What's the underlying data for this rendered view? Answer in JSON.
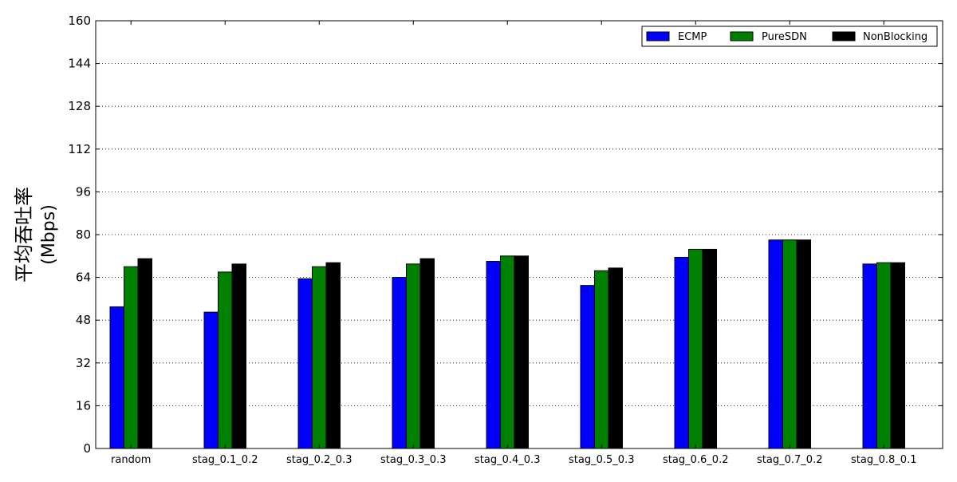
{
  "chart_data": {
    "type": "bar",
    "title": "",
    "xlabel": "",
    "ylabel": "平均吞吐率\n(Mbps)",
    "ylim": [
      0,
      160
    ],
    "yticks": [
      0,
      16,
      32,
      48,
      64,
      80,
      96,
      112,
      128,
      144,
      160
    ],
    "grid": "horizontal-dotted",
    "legend_position": "top-right",
    "categories": [
      "random",
      "stag_0.1_0.2",
      "stag_0.2_0.3",
      "stag_0.3_0.3",
      "stag_0.4_0.3",
      "stag_0.5_0.3",
      "stag_0.6_0.2",
      "stag_0.7_0.2",
      "stag_0.8_0.1"
    ],
    "series": [
      {
        "name": "ECMP",
        "color": "#0000ff",
        "values": [
          53,
          51,
          63.5,
          64,
          70,
          61,
          71.5,
          78,
          69
        ]
      },
      {
        "name": "PureSDN",
        "color": "#008000",
        "values": [
          68,
          66,
          68,
          69,
          72,
          66.5,
          74.5,
          78,
          69.5
        ]
      },
      {
        "name": "NonBlocking",
        "color": "#000000",
        "values": [
          71,
          69,
          69.5,
          71,
          72,
          67.5,
          74.5,
          78,
          69.5
        ]
      }
    ]
  }
}
